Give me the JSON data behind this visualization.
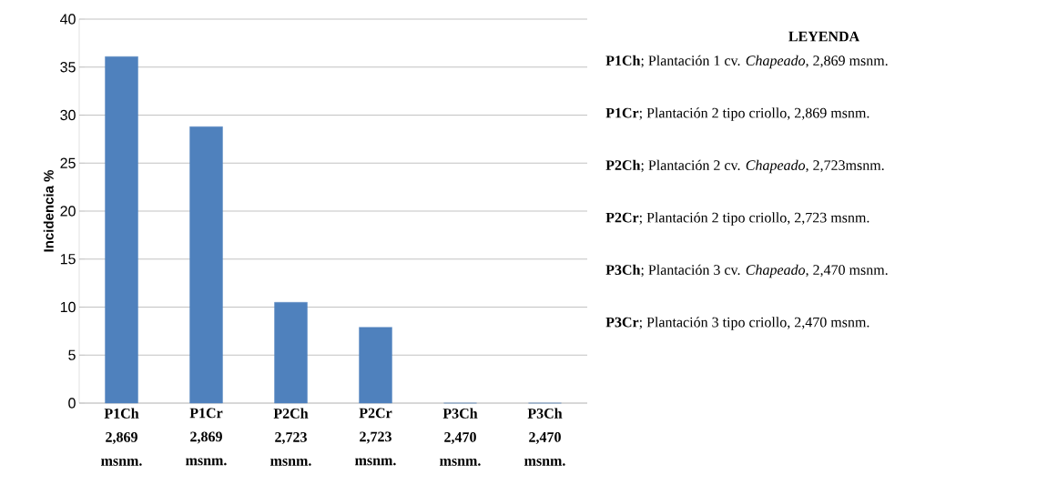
{
  "chart_data": {
    "type": "bar",
    "ylabel": "Incidencia %",
    "categories": [
      "P1Ch 2,869 msnm.",
      "P1Cr 2,869 msnm.",
      "P2Ch 2,723 msnm.",
      "P2Cr 2,723 msnm.",
      "P3Ch 2,470 msnm.",
      "P3Ch 2,470 msnm."
    ],
    "values": [
      36.1,
      28.8,
      10.5,
      7.9,
      0,
      0
    ],
    "color": "#4f81bd",
    "ylim": [
      0,
      40
    ],
    "yticks": [
      0,
      5,
      10,
      15,
      20,
      25,
      30,
      35,
      40
    ],
    "grid": "y",
    "annotations": [
      "**LEYENDA**",
      "**P1Ch**; Plantación 1 cv. *Chapeado*, 2,869 msnm.",
      "**P1Cr**; Plantación 2 tipo criollo, 2,869 msnm.",
      "**P2Ch**; Plantación 2 cv. *Chapeado*, 2,723msnm.",
      "**P2Cr**; Plantación 2 tipo criollo, 2,723 msnm.",
      "**P3Ch**; Plantación 3 cv. *Chapeado*, 2,470 msnm.",
      "**P3Cr**; Plantación 3 tipo criollo, 2,470 msnm."
    ]
  }
}
